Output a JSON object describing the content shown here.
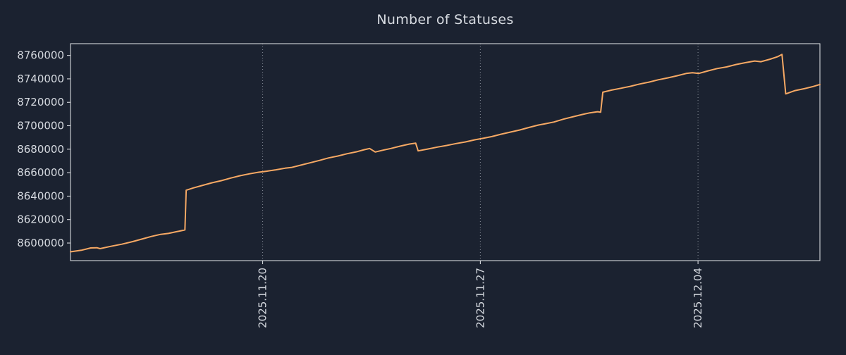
{
  "colors": {
    "background": "#1b2230",
    "text": "#d6dae0",
    "axis": "#e7e9ed",
    "grid": "#9aa1ac",
    "accent": "#f7a964"
  },
  "chart_data": {
    "type": "line",
    "title": "Number of Statuses",
    "xlabel": "",
    "ylabel": "",
    "legend": "none",
    "grid": "vertical-dotted",
    "xlim": [
      0,
      24.1
    ],
    "ylim": [
      8585000,
      8770000
    ],
    "y_ticks": [
      8600000,
      8620000,
      8640000,
      8660000,
      8680000,
      8700000,
      8720000,
      8740000,
      8760000
    ],
    "x_ticks": [
      {
        "x": 6.18,
        "label": "2025.11.20"
      },
      {
        "x": 13.18,
        "label": "2025.11.27"
      },
      {
        "x": 20.18,
        "label": "2025.12.04"
      }
    ],
    "x_unit": "days from 2025.11.14",
    "series": [
      {
        "name": "statuses",
        "color": "#f7a964",
        "points": [
          [
            0.0,
            8592500
          ],
          [
            0.35,
            8593800
          ],
          [
            0.65,
            8595800
          ],
          [
            0.85,
            8596000
          ],
          [
            0.95,
            8595200
          ],
          [
            1.3,
            8597200
          ],
          [
            1.65,
            8599000
          ],
          [
            2.0,
            8601200
          ],
          [
            2.3,
            8603400
          ],
          [
            2.6,
            8605600
          ],
          [
            2.9,
            8607400
          ],
          [
            3.15,
            8608200
          ],
          [
            3.4,
            8609600
          ],
          [
            3.62,
            8610800
          ],
          [
            3.68,
            8611200
          ],
          [
            3.72,
            8645000
          ],
          [
            3.95,
            8647000
          ],
          [
            4.25,
            8649200
          ],
          [
            4.55,
            8651400
          ],
          [
            4.85,
            8653200
          ],
          [
            5.15,
            8655400
          ],
          [
            5.45,
            8657400
          ],
          [
            5.75,
            8659000
          ],
          [
            6.05,
            8660400
          ],
          [
            6.3,
            8661200
          ],
          [
            6.6,
            8662400
          ],
          [
            6.9,
            8663800
          ],
          [
            7.1,
            8664400
          ],
          [
            7.4,
            8666400
          ],
          [
            7.7,
            8668400
          ],
          [
            8.0,
            8670400
          ],
          [
            8.3,
            8672600
          ],
          [
            8.6,
            8674200
          ],
          [
            8.9,
            8676200
          ],
          [
            9.2,
            8677800
          ],
          [
            9.45,
            8679600
          ],
          [
            9.62,
            8680600
          ],
          [
            9.8,
            8677600
          ],
          [
            10.05,
            8679200
          ],
          [
            10.3,
            8680600
          ],
          [
            10.6,
            8682600
          ],
          [
            10.9,
            8684400
          ],
          [
            11.1,
            8685200
          ],
          [
            11.18,
            8678600
          ],
          [
            11.5,
            8680200
          ],
          [
            11.8,
            8681800
          ],
          [
            12.1,
            8683200
          ],
          [
            12.4,
            8684800
          ],
          [
            12.7,
            8686200
          ],
          [
            13.0,
            8688000
          ],
          [
            13.25,
            8689200
          ],
          [
            13.55,
            8690800
          ],
          [
            13.85,
            8692800
          ],
          [
            14.15,
            8694600
          ],
          [
            14.45,
            8696400
          ],
          [
            14.75,
            8698600
          ],
          [
            15.05,
            8700600
          ],
          [
            15.25,
            8701600
          ],
          [
            15.55,
            8703200
          ],
          [
            15.85,
            8705600
          ],
          [
            16.15,
            8707600
          ],
          [
            16.45,
            8709600
          ],
          [
            16.7,
            8711000
          ],
          [
            16.95,
            8712000
          ],
          [
            17.05,
            8711600
          ],
          [
            17.12,
            8728600
          ],
          [
            17.4,
            8730400
          ],
          [
            17.7,
            8732000
          ],
          [
            18.0,
            8733600
          ],
          [
            18.3,
            8735600
          ],
          [
            18.6,
            8737200
          ],
          [
            18.9,
            8739200
          ],
          [
            19.2,
            8740800
          ],
          [
            19.5,
            8742600
          ],
          [
            19.8,
            8744600
          ],
          [
            20.0,
            8745200
          ],
          [
            20.2,
            8744600
          ],
          [
            20.5,
            8746800
          ],
          [
            20.8,
            8748800
          ],
          [
            21.1,
            8750200
          ],
          [
            21.4,
            8752200
          ],
          [
            21.7,
            8753800
          ],
          [
            22.0,
            8755200
          ],
          [
            22.2,
            8754600
          ],
          [
            22.5,
            8756800
          ],
          [
            22.75,
            8759000
          ],
          [
            22.88,
            8760800
          ],
          [
            23.0,
            8727200
          ],
          [
            23.3,
            8730000
          ],
          [
            23.6,
            8731600
          ],
          [
            23.9,
            8733600
          ],
          [
            24.1,
            8735200
          ]
        ]
      }
    ]
  }
}
